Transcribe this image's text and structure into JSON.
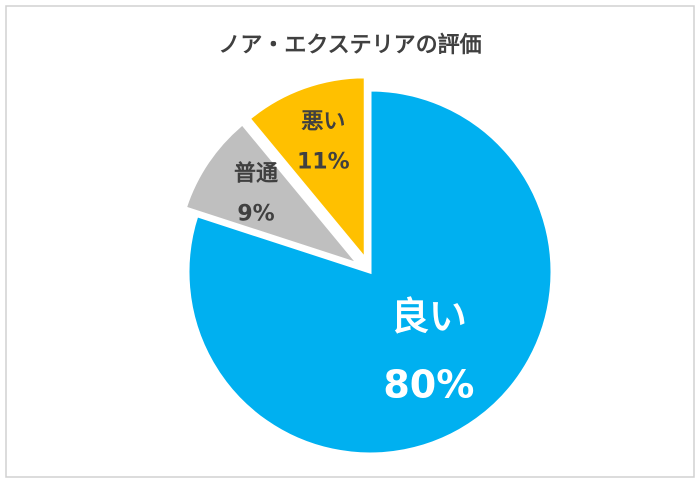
{
  "chart_data": {
    "type": "pie",
    "title": "ノア・エクステリアの評価",
    "categories": [
      "良い",
      "普通",
      "悪い"
    ],
    "values": [
      80,
      9,
      11
    ],
    "value_labels": [
      "80%",
      "9%",
      "11%"
    ],
    "colors": [
      "#00b0f0",
      "#bfbfbf",
      "#ffc000"
    ]
  }
}
